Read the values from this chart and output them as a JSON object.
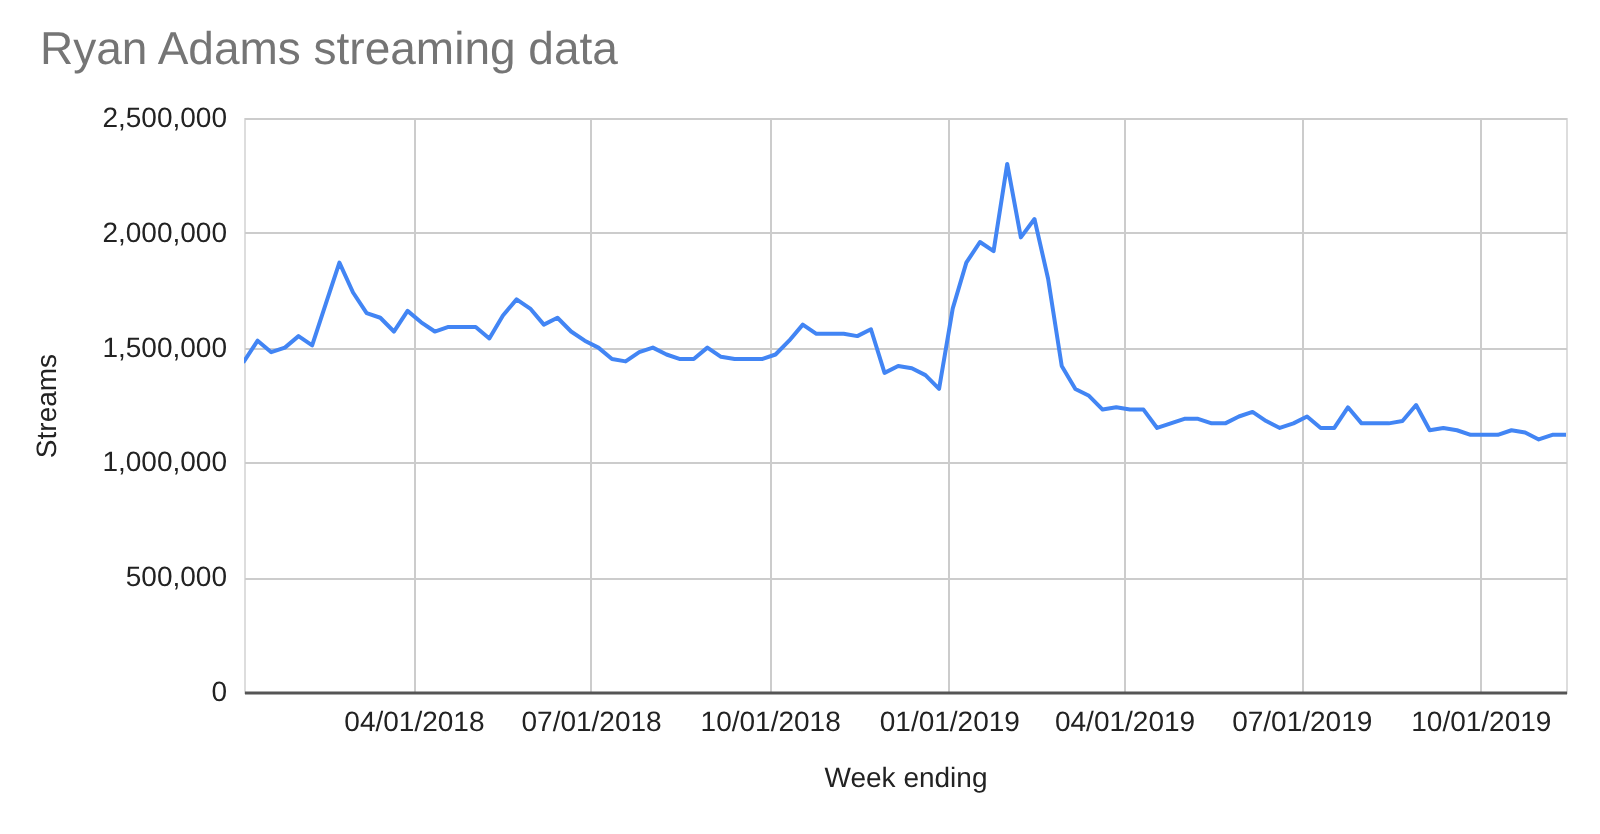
{
  "chart_data": {
    "type": "line",
    "title": "Ryan Adams streaming data",
    "xlabel": "Week ending",
    "ylabel": "Streams",
    "x": [
      "2018-01-04",
      "2018-01-11",
      "2018-01-18",
      "2018-01-25",
      "2018-02-01",
      "2018-02-08",
      "2018-02-15",
      "2018-02-22",
      "2018-03-01",
      "2018-03-08",
      "2018-03-15",
      "2018-03-22",
      "2018-03-29",
      "2018-04-05",
      "2018-04-12",
      "2018-04-19",
      "2018-04-26",
      "2018-05-03",
      "2018-05-10",
      "2018-05-17",
      "2018-05-24",
      "2018-05-31",
      "2018-06-07",
      "2018-06-14",
      "2018-06-21",
      "2018-06-28",
      "2018-07-05",
      "2018-07-12",
      "2018-07-19",
      "2018-07-26",
      "2018-08-02",
      "2018-08-09",
      "2018-08-16",
      "2018-08-23",
      "2018-08-30",
      "2018-09-06",
      "2018-09-13",
      "2018-09-20",
      "2018-09-27",
      "2018-10-04",
      "2018-10-11",
      "2018-10-18",
      "2018-10-25",
      "2018-11-01",
      "2018-11-08",
      "2018-11-15",
      "2018-11-22",
      "2018-11-29",
      "2018-12-06",
      "2018-12-13",
      "2018-12-20",
      "2018-12-27",
      "2019-01-03",
      "2019-01-10",
      "2019-01-17",
      "2019-01-24",
      "2019-01-31",
      "2019-02-07",
      "2019-02-14",
      "2019-02-21",
      "2019-02-28",
      "2019-03-07",
      "2019-03-14",
      "2019-03-21",
      "2019-03-28",
      "2019-04-04",
      "2019-04-11",
      "2019-04-18",
      "2019-04-25",
      "2019-05-02",
      "2019-05-09",
      "2019-05-16",
      "2019-05-23",
      "2019-05-30",
      "2019-06-06",
      "2019-06-13",
      "2019-06-20",
      "2019-06-27",
      "2019-07-04",
      "2019-07-11",
      "2019-07-18",
      "2019-07-25",
      "2019-08-01",
      "2019-08-08",
      "2019-08-15",
      "2019-08-22",
      "2019-08-29",
      "2019-09-05",
      "2019-09-12",
      "2019-09-19",
      "2019-09-26",
      "2019-10-03",
      "2019-10-10",
      "2019-10-17",
      "2019-10-24",
      "2019-10-31",
      "2019-11-07",
      "2019-11-14"
    ],
    "series": [
      {
        "color": "#4285f4",
        "values": [
          1440000,
          1530000,
          1480000,
          1500000,
          1550000,
          1510000,
          1690000,
          1870000,
          1740000,
          1650000,
          1630000,
          1570000,
          1660000,
          1610000,
          1570000,
          1590000,
          1590000,
          1590000,
          1540000,
          1640000,
          1710000,
          1670000,
          1600000,
          1630000,
          1570000,
          1530000,
          1500000,
          1450000,
          1440000,
          1480000,
          1500000,
          1470000,
          1450000,
          1450000,
          1500000,
          1460000,
          1450000,
          1450000,
          1450000,
          1470000,
          1530000,
          1600000,
          1560000,
          1560000,
          1560000,
          1550000,
          1580000,
          1390000,
          1420000,
          1410000,
          1380000,
          1320000,
          1670000,
          1870000,
          1960000,
          1920000,
          2300000,
          1980000,
          2060000,
          1800000,
          1420000,
          1320000,
          1290000,
          1230000,
          1240000,
          1230000,
          1230000,
          1150000,
          1170000,
          1190000,
          1190000,
          1170000,
          1170000,
          1200000,
          1220000,
          1180000,
          1150000,
          1170000,
          1200000,
          1150000,
          1150000,
          1240000,
          1170000,
          1170000,
          1170000,
          1180000,
          1250000,
          1140000,
          1150000,
          1140000,
          1120000,
          1120000,
          1120000,
          1140000,
          1130000,
          1100000,
          1120000,
          1120000
        ]
      }
    ],
    "xlim": [
      "2018-01-04",
      "2019-11-14"
    ],
    "xticks": [
      {
        "value": "2018-04-01",
        "label": "04/01/2018"
      },
      {
        "value": "2018-07-01",
        "label": "07/01/2018"
      },
      {
        "value": "2018-10-01",
        "label": "10/01/2018"
      },
      {
        "value": "2019-01-01",
        "label": "01/01/2019"
      },
      {
        "value": "2019-04-01",
        "label": "04/01/2019"
      },
      {
        "value": "2019-07-01",
        "label": "07/01/2019"
      },
      {
        "value": "2019-10-01",
        "label": "10/01/2019"
      }
    ],
    "ylim": [
      0,
      2500000
    ],
    "yticks": [
      0,
      {
        "value": 500000,
        "label": "500,000"
      },
      {
        "value": 1000000,
        "label": "1,000,000"
      },
      {
        "value": 1500000,
        "label": "1,500,000"
      },
      {
        "value": 2000000,
        "label": "2,000,000"
      },
      {
        "value": 2500000,
        "label": "2,500,000"
      }
    ],
    "grid": true,
    "line_style": "solid"
  }
}
